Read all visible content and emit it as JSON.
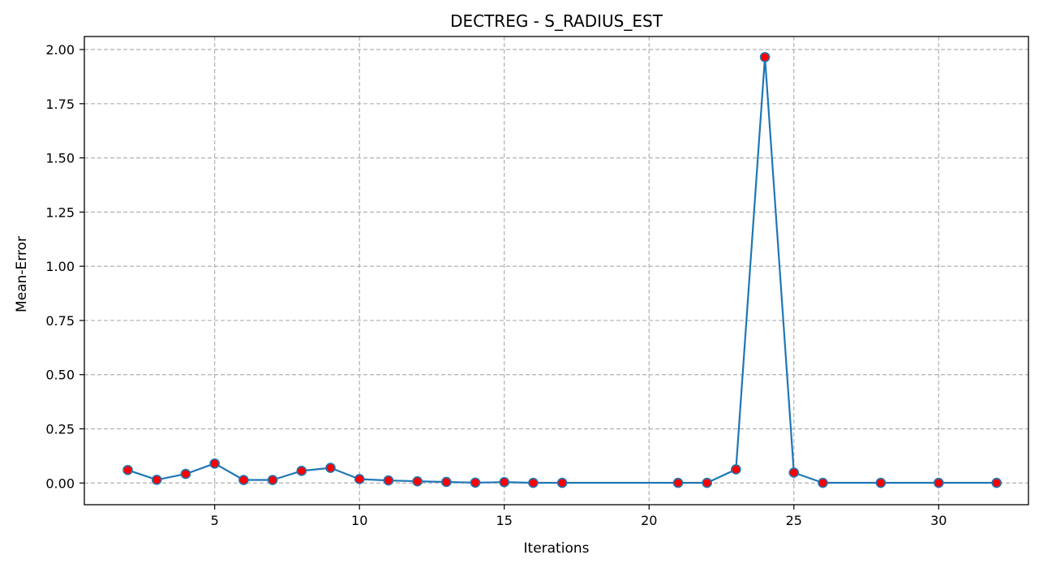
{
  "chart_data": {
    "type": "line",
    "title": "DECTREG - S_RADIUS_EST",
    "xlabel": "Iterations",
    "ylabel": "Mean-Error",
    "xlim": [
      0.5,
      33.1
    ],
    "ylim": [
      -0.1,
      2.06
    ],
    "xticks": [
      5,
      10,
      15,
      20,
      25,
      30
    ],
    "yticks": [
      0.0,
      0.25,
      0.5,
      0.75,
      1.0,
      1.25,
      1.5,
      1.75,
      2.0
    ],
    "ytick_labels": [
      "0.00",
      "0.25",
      "0.50",
      "0.75",
      "1.00",
      "1.25",
      "1.50",
      "1.75",
      "2.00"
    ],
    "grid": true,
    "line_color": "#1f77b4",
    "marker_color": "#ff0000",
    "series": [
      {
        "x": [
          2,
          3,
          4,
          5,
          6,
          7,
          8,
          9,
          10,
          11,
          12,
          13,
          14,
          15,
          16,
          17,
          21,
          22,
          23,
          24,
          25,
          26,
          28,
          30,
          32
        ],
        "y": [
          0.06,
          0.015,
          0.042,
          0.09,
          0.014,
          0.014,
          0.056,
          0.07,
          0.018,
          0.012,
          0.008,
          0.005,
          0.002,
          0.004,
          0.001,
          0.001,
          0.001,
          0.001,
          0.063,
          1.965,
          0.048,
          0.001,
          0.001,
          0.001,
          0.001
        ]
      }
    ]
  }
}
